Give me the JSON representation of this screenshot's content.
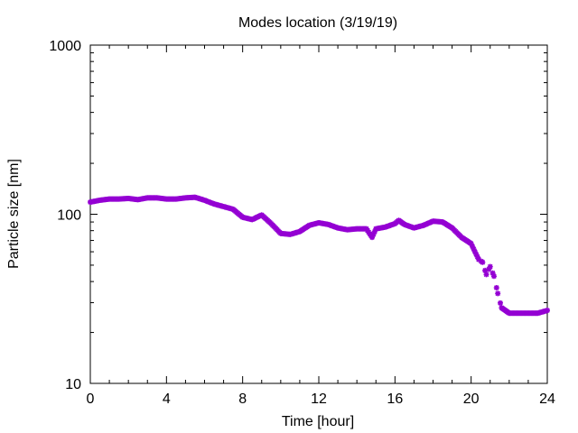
{
  "chart_data": {
    "type": "scatter",
    "title": "Modes location (3/19/19)",
    "xlabel": "Time [hour]",
    "ylabel": "Particle size [nm]",
    "xlim": [
      0,
      24
    ],
    "ylim": [
      10,
      1000
    ],
    "yscale": "log",
    "grid": false,
    "xticks": [
      0,
      4,
      8,
      12,
      16,
      20,
      24
    ],
    "xtick_labels": [
      "0",
      "4",
      "8",
      "12",
      "16",
      "20",
      "24"
    ],
    "yticks": [
      10,
      100,
      1000
    ],
    "ytick_labels": [
      "10",
      "100",
      "1000"
    ],
    "marker_color": "#9400d3",
    "series": [
      {
        "x": [
          0.0,
          0.5,
          1.0,
          1.5,
          2.0,
          2.5,
          3.0,
          3.5,
          4.0,
          4.5,
          5.0,
          5.5,
          6.0,
          6.5,
          7.0,
          7.5,
          8.0,
          8.5,
          9.0,
          9.5,
          10.0,
          10.5,
          11.0,
          11.5,
          12.0,
          12.5,
          13.0,
          13.5,
          14.0,
          14.5,
          14.8,
          15.0,
          15.5,
          16.0,
          16.2,
          16.5,
          17.0,
          17.5,
          18.0,
          18.5,
          19.0,
          19.5,
          20.0,
          20.2,
          20.4,
          20.6,
          20.8,
          21.0,
          21.2,
          21.4,
          21.6,
          22.0,
          22.5,
          23.0,
          23.5,
          24.0
        ],
        "y": [
          118,
          121,
          123,
          123,
          124,
          122,
          125,
          125,
          123,
          123,
          125,
          126,
          121,
          115,
          111,
          107,
          96,
          93,
          99,
          88,
          77,
          76,
          79,
          86,
          89,
          87,
          83,
          81,
          82,
          82,
          73,
          82,
          84,
          88,
          92,
          87,
          83,
          86,
          91,
          90,
          83,
          73,
          67,
          60,
          54,
          52,
          44,
          49,
          43,
          34,
          28,
          26,
          26,
          26,
          26,
          27
        ]
      }
    ]
  }
}
